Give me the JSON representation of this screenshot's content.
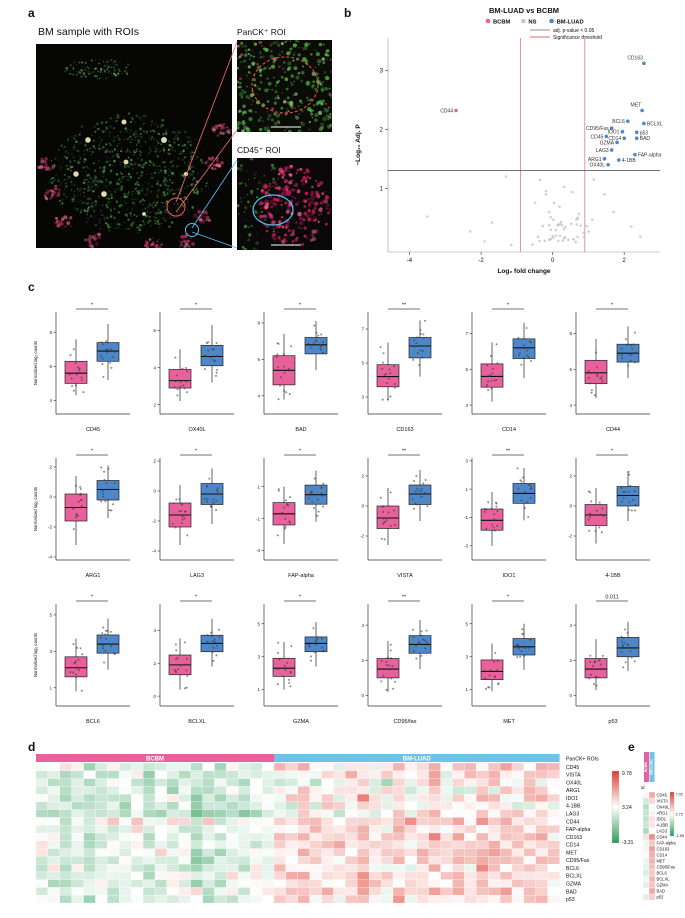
{
  "panels": {
    "a": "a",
    "b": "b",
    "c": "c",
    "d": "d",
    "e": "e"
  },
  "panel_a": {
    "title": "BM sample with ROIs",
    "roi_top_label": "PanCK⁺ ROI",
    "roi_bottom_label": "CD45⁺ ROI"
  },
  "colors": {
    "bcbm": "#E8619C",
    "bmluad": "#4E87C7",
    "bmluad_annotation": "#6FC2EA",
    "ns": "#C8C8C8",
    "significance_line": "#E06666",
    "heat_high": "#E03B2F",
    "heat_mid": "#FFFFFF",
    "heat_low": "#2E9E5B"
  },
  "chart_data": [
    {
      "id": "volcano",
      "type": "scatter",
      "title": "BM-LUAD vs BCBM",
      "legend": [
        {
          "label": "BCBM",
          "color": "#E8619C"
        },
        {
          "label": "NS",
          "color": "#C8C8C8"
        },
        {
          "label": "BM-LUAD",
          "color": "#4E87C7"
        }
      ],
      "threshold_legend": [
        {
          "label": "adj. p-value < 0.05",
          "line_color": "#8C8C8C"
        },
        {
          "label": "Significance threshold",
          "line_color": "#E06666"
        }
      ],
      "xlabel": "Log₂ fold change",
      "ylabel": "−Log₁₀ Adj. P",
      "xlim": [
        -4.6,
        3.0
      ],
      "ylim": [
        -0.08,
        3.55
      ],
      "xticks": [
        -4,
        -2,
        0,
        2
      ],
      "yticks": [
        1,
        2,
        3
      ],
      "hline_adj_p": 1.3,
      "vlines_fold_change": [
        -0.9,
        0.9
      ],
      "labeled_points": [
        {
          "label": "CD44",
          "x": -2.7,
          "y": 2.32,
          "group": "BCBM",
          "anchor": "end",
          "dx": -3,
          "dy": 2
        },
        {
          "label": "CD163",
          "x": 2.55,
          "y": 3.12,
          "group": "BM-LUAD",
          "anchor": "end",
          "dx": -1,
          "dy": -4
        },
        {
          "label": "MET",
          "x": 2.5,
          "y": 2.32,
          "group": "BM-LUAD",
          "anchor": "end",
          "dx": -1,
          "dy": -4
        },
        {
          "label": "BCL6",
          "x": 2.1,
          "y": 2.14,
          "group": "BM-LUAD",
          "anchor": "end",
          "dx": -3,
          "dy": 2
        },
        {
          "label": "BCLXL",
          "x": 2.55,
          "y": 2.1,
          "group": "BM-LUAD",
          "anchor": "start",
          "dx": 3,
          "dy": 2
        },
        {
          "label": "CD95/Fas",
          "x": 1.65,
          "y": 2.02,
          "group": "BM-LUAD",
          "anchor": "end",
          "dx": -3,
          "dy": 2
        },
        {
          "label": "IDO1",
          "x": 1.95,
          "y": 1.96,
          "group": "BM-LUAD",
          "anchor": "end",
          "dx": -3,
          "dy": 2
        },
        {
          "label": "p53",
          "x": 2.35,
          "y": 1.95,
          "group": "BM-LUAD",
          "anchor": "start",
          "dx": 3,
          "dy": 2
        },
        {
          "label": "CD45",
          "x": 1.5,
          "y": 1.88,
          "group": "BM-LUAD",
          "anchor": "end",
          "dx": -3,
          "dy": 2
        },
        {
          "label": "CD14",
          "x": 2.0,
          "y": 1.85,
          "group": "BM-LUAD",
          "anchor": "end",
          "dx": -3,
          "dy": 2
        },
        {
          "label": "BAD",
          "x": 2.35,
          "y": 1.85,
          "group": "BM-LUAD",
          "anchor": "start",
          "dx": 3,
          "dy": 2
        },
        {
          "label": "GZMA",
          "x": 1.8,
          "y": 1.78,
          "group": "BM-LUAD",
          "anchor": "end",
          "dx": -3,
          "dy": 2
        },
        {
          "label": "LAG3",
          "x": 1.65,
          "y": 1.65,
          "group": "BM-LUAD",
          "anchor": "end",
          "dx": -3,
          "dy": 2
        },
        {
          "label": "ARG1",
          "x": 1.45,
          "y": 1.5,
          "group": "BM-LUAD",
          "anchor": "end",
          "dx": -3,
          "dy": 2
        },
        {
          "label": "4-1BB",
          "x": 1.85,
          "y": 1.48,
          "group": "BM-LUAD",
          "anchor": "start",
          "dx": 3,
          "dy": 2
        },
        {
          "label": "OX40L",
          "x": 1.55,
          "y": 1.4,
          "group": "BM-LUAD",
          "anchor": "end",
          "dx": -3,
          "dy": 2
        },
        {
          "label": "FAP-alpha",
          "x": 2.3,
          "y": 1.57,
          "group": "BM-LUAD",
          "anchor": "start",
          "dx": 3,
          "dy": 2
        }
      ],
      "ns_cloud": {
        "count": 55,
        "x_center": 0.15,
        "x_spread": 1.6,
        "y_spread": 1.5,
        "x_range": [
          -1.55,
          1.28
        ],
        "y_range": [
          0.02,
          1.24
        ]
      },
      "ns_outliers": [
        [
          -3.5,
          0.52
        ],
        [
          -2.3,
          0.27
        ],
        [
          -1.9,
          0.1
        ],
        [
          1.45,
          0.9
        ],
        [
          1.7,
          0.6
        ],
        [
          2.2,
          0.35
        ],
        [
          1.15,
          1.15
        ],
        [
          -1.3,
          1.2
        ],
        [
          2.45,
          0.18
        ],
        [
          -1.7,
          0.42
        ]
      ]
    },
    {
      "id": "boxplots",
      "type": "box",
      "ylabel": "Normalized log₂ counts",
      "groups": [
        "BCBM",
        "BM-LUAD"
      ],
      "stats_format": [
        "whisker_low",
        "q1",
        "median",
        "q3",
        "whisker_high"
      ],
      "plots": [
        {
          "marker": "CD45",
          "sig": "*",
          "ylim": [
            3.2,
            9.2
          ],
          "yticks": [
            4,
            6,
            8
          ],
          "BCBM": [
            4.3,
            5.0,
            5.6,
            6.3,
            7.6
          ],
          "BM-LUAD": [
            5.2,
            6.3,
            6.9,
            7.4,
            8.5
          ]
        },
        {
          "marker": "OX40L",
          "sig": "*",
          "ylim": [
            1.5,
            7.0
          ],
          "yticks": [
            2,
            4,
            6
          ],
          "BCBM": [
            2.2,
            2.9,
            3.3,
            3.9,
            5.0
          ],
          "BM-LUAD": [
            3.2,
            4.1,
            4.6,
            5.2,
            6.3
          ]
        },
        {
          "marker": "BAD",
          "sig": "*",
          "ylim": [
            3.0,
            8.6
          ],
          "yticks": [
            4,
            6,
            8
          ],
          "BCBM": [
            3.8,
            4.6,
            5.4,
            6.2,
            7.4
          ],
          "BM-LUAD": [
            5.4,
            6.3,
            6.8,
            7.2,
            8.1
          ]
        },
        {
          "marker": "CD163",
          "sig": "**",
          "ylim": [
            2.0,
            8.0
          ],
          "yticks": [
            3,
            5,
            7
          ],
          "BCBM": [
            2.8,
            3.6,
            4.2,
            4.9,
            6.2
          ],
          "BM-LUAD": [
            4.2,
            5.3,
            6.0,
            6.5,
            7.5
          ]
        },
        {
          "marker": "CD14",
          "sig": "*",
          "ylim": [
            2.5,
            8.2
          ],
          "yticks": [
            3,
            5,
            7
          ],
          "BCBM": [
            3.2,
            4.0,
            4.6,
            5.3,
            6.5
          ],
          "BM-LUAD": [
            4.5,
            5.6,
            6.2,
            6.7,
            7.6
          ]
        },
        {
          "marker": "CD44",
          "sig": "*",
          "ylim": [
            3.5,
            9.2
          ],
          "yticks": [
            4,
            6,
            8
          ],
          "BCBM": [
            4.4,
            5.2,
            5.8,
            6.5,
            7.7
          ],
          "BM-LUAD": [
            5.5,
            6.4,
            6.9,
            7.4,
            8.4
          ]
        },
        {
          "marker": "ARG1",
          "sig": "*",
          "ylim": [
            -4.2,
            2.6
          ],
          "yticks": [
            -4,
            -2,
            0,
            2
          ],
          "BCBM": [
            -3.2,
            -1.6,
            -0.7,
            0.2,
            1.4
          ],
          "BM-LUAD": [
            -1.4,
            -0.2,
            0.5,
            1.1,
            2.1
          ]
        },
        {
          "marker": "LAG3",
          "sig": "*",
          "ylim": [
            -4.6,
            2.2
          ],
          "yticks": [
            -4,
            -2,
            0,
            2
          ],
          "BCBM": [
            -3.6,
            -2.4,
            -1.6,
            -0.8,
            0.4
          ],
          "BM-LUAD": [
            -2.2,
            -0.9,
            -0.2,
            0.5,
            1.5
          ]
        },
        {
          "marker": "FAP-alpha",
          "sig": "*",
          "ylim": [
            -3.6,
            2.8
          ],
          "yticks": [
            -3,
            -1,
            1
          ],
          "BCBM": [
            -2.6,
            -1.4,
            -0.7,
            0.0,
            1.0
          ],
          "BM-LUAD": [
            -1.2,
            -0.1,
            0.5,
            1.1,
            2.0
          ]
        },
        {
          "marker": "VISTA",
          "sig": "**",
          "ylim": [
            -3.6,
            3.2
          ],
          "yticks": [
            -2,
            0,
            2
          ],
          "BCBM": [
            -2.6,
            -1.5,
            -0.8,
            0.0,
            1.2
          ],
          "BM-LUAD": [
            -1.0,
            0.1,
            0.8,
            1.4,
            2.4
          ]
        },
        {
          "marker": "IDO1",
          "sig": "**",
          "ylim": [
            -4.0,
            3.2
          ],
          "yticks": [
            -3,
            -1,
            1,
            3
          ],
          "BCBM": [
            -3.0,
            -1.9,
            -1.2,
            -0.4,
            0.8
          ],
          "BM-LUAD": [
            -1.2,
            0.0,
            0.7,
            1.4,
            2.5
          ]
        },
        {
          "marker": "4-1BB",
          "sig": "*",
          "ylim": [
            -3.6,
            3.2
          ],
          "yticks": [
            -2,
            0,
            2
          ],
          "BCBM": [
            -2.5,
            -1.3,
            -0.6,
            0.1,
            1.2
          ],
          "BM-LUAD": [
            -1.0,
            0.0,
            0.7,
            1.3,
            2.3
          ]
        },
        {
          "marker": "BCL6",
          "sig": "*",
          "ylim": [
            0.0,
            5.6
          ],
          "yticks": [
            1,
            3,
            5
          ],
          "BCBM": [
            0.8,
            1.6,
            2.1,
            2.7,
            3.7
          ],
          "BM-LUAD": [
            2.0,
            2.9,
            3.4,
            3.9,
            4.8
          ]
        },
        {
          "marker": "BCLXL",
          "sig": "*",
          "ylim": [
            -0.6,
            5.6
          ],
          "yticks": [
            0,
            2,
            4
          ],
          "BCBM": [
            0.4,
            1.3,
            1.9,
            2.5,
            3.5
          ],
          "BM-LUAD": [
            1.8,
            2.7,
            3.2,
            3.7,
            4.7
          ]
        },
        {
          "marker": "GZMA",
          "sig": "*",
          "ylim": [
            0.0,
            6.2
          ],
          "yticks": [
            1,
            3,
            5
          ],
          "BCBM": [
            1.0,
            1.8,
            2.3,
            2.9,
            3.9
          ],
          "BM-LUAD": [
            2.4,
            3.3,
            3.8,
            4.2,
            5.1
          ]
        },
        {
          "marker": "CD95/fas",
          "sig": "**",
          "ylim": [
            -0.6,
            5.2
          ],
          "yticks": [
            0,
            2,
            4
          ],
          "BCBM": [
            0.2,
            1.0,
            1.5,
            2.1,
            3.1
          ],
          "BM-LUAD": [
            1.5,
            2.4,
            2.9,
            3.4,
            4.3
          ]
        },
        {
          "marker": "MET",
          "sig": "*",
          "ylim": [
            0.0,
            6.2
          ],
          "yticks": [
            1,
            3,
            5
          ],
          "BCBM": [
            0.9,
            1.6,
            2.1,
            2.8,
            3.8
          ],
          "BM-LUAD": [
            2.2,
            3.1,
            3.6,
            4.1,
            5.0
          ]
        },
        {
          "marker": "p53",
          "sig": "0.011",
          "ylim": [
            -0.6,
            5.2
          ],
          "yticks": [
            0,
            2,
            4
          ],
          "BCBM": [
            0.3,
            1.0,
            1.5,
            2.1,
            3.2
          ],
          "BM-LUAD": [
            1.4,
            2.2,
            2.7,
            3.3,
            4.2
          ]
        }
      ]
    },
    {
      "id": "heatmap_panck_rois",
      "type": "heatmap",
      "annotation_label": "PanCK+ ROIs",
      "col_groups": [
        {
          "label": "BCBM",
          "n_cols": 20,
          "color": "#E8619C"
        },
        {
          "label": "BM-LUAD",
          "n_cols": 24,
          "color": "#6FC2EA"
        }
      ],
      "rows": [
        "CD45",
        "VISTA",
        "OX40L",
        "ARG1",
        "IDO1",
        "4-1BB",
        "LAG3",
        "CD44",
        "FAP-alpha",
        "CD163",
        "CD14",
        "MET",
        "CD95/Fas",
        "BCL6",
        "BCLXL",
        "GZMA",
        "BAD",
        "p53"
      ],
      "scale_labels": {
        "max": "9.78",
        "mid": "3.24",
        "min": "-3.31"
      },
      "row_group_means": [
        [
          2.6,
          4.6
        ],
        [
          1.6,
          3.9
        ],
        [
          1.9,
          3.4
        ],
        [
          2.0,
          3.8
        ],
        [
          1.6,
          4.0
        ],
        [
          1.8,
          3.8
        ],
        [
          1.3,
          3.5
        ],
        [
          3.1,
          5.1
        ],
        [
          2.5,
          4.2
        ],
        [
          2.2,
          4.9
        ],
        [
          2.5,
          4.7
        ],
        [
          2.4,
          4.7
        ],
        [
          2.3,
          4.5
        ],
        [
          2.0,
          4.3
        ],
        [
          2.5,
          4.7
        ],
        [
          2.2,
          4.5
        ],
        [
          2.8,
          4.9
        ],
        [
          2.2,
          4.3
        ]
      ]
    },
    {
      "id": "heatmap_group_means",
      "type": "heatmap",
      "annotation_label": "id",
      "cols": [
        "BCBM",
        "BM-LUAD"
      ],
      "rows": [
        "CD45",
        "VISTA",
        "OX40L",
        "ARG1",
        "IDO1",
        "4-1BB",
        "LAG3",
        "CD44",
        "FAP-alpha",
        "CD163",
        "CD14",
        "MET",
        "CD95/Fas",
        "BCL6",
        "BCLXL",
        "GZMA",
        "BAD",
        "p53"
      ],
      "scale_labels": {
        "max": "7.02",
        "mid": "2.72",
        "min": "-1.59"
      },
      "values": [
        [
          2.9,
          4.6
        ],
        [
          1.8,
          3.6
        ],
        [
          1.2,
          2.6
        ],
        [
          1.5,
          3.0
        ],
        [
          1.4,
          3.4
        ],
        [
          1.6,
          3.3
        ],
        [
          1.0,
          2.8
        ],
        [
          3.4,
          5.2
        ],
        [
          2.3,
          3.9
        ],
        [
          2.4,
          4.8
        ],
        [
          2.6,
          4.5
        ],
        [
          2.3,
          4.4
        ],
        [
          2.2,
          4.1
        ],
        [
          1.9,
          3.9
        ],
        [
          2.4,
          4.3
        ],
        [
          2.1,
          4.0
        ],
        [
          2.7,
          4.6
        ],
        [
          2.0,
          3.8
        ]
      ]
    }
  ]
}
